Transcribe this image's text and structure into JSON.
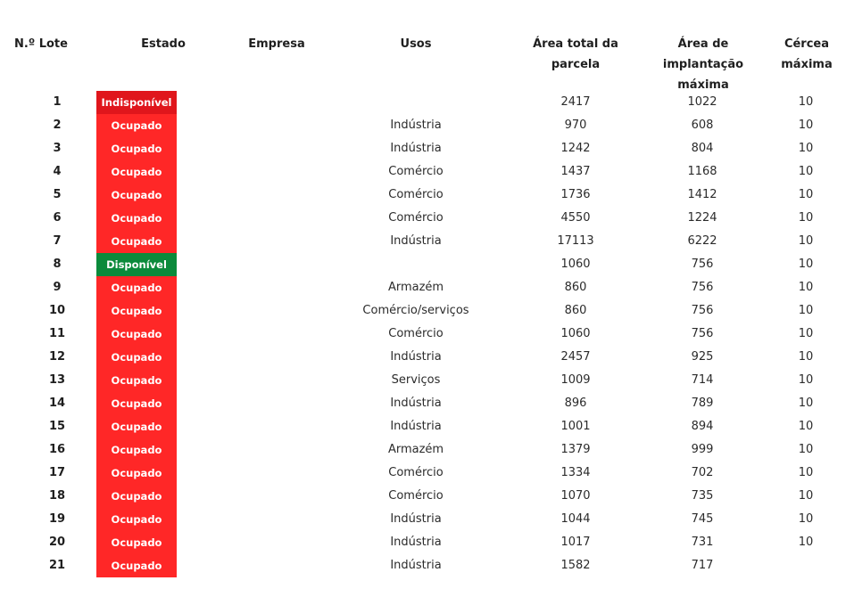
{
  "table": {
    "headers": {
      "lote": "N.º Lote",
      "estado": "Estado",
      "empresa": "Empresa",
      "usos": "Usos",
      "area_total": [
        "Área total da",
        "parcela"
      ],
      "area_implantacao": [
        "Área de",
        "implantação",
        "máxima"
      ],
      "cercea": [
        "Cércea",
        "máxima"
      ]
    },
    "status_colors": {
      "Ocupado": "#ff2727",
      "Indisponível": "#e0161c",
      "Disponível": "#0b8a3b"
    },
    "rows": [
      {
        "lote": "1",
        "estado": "Indisponível",
        "empresa": "",
        "usos": "",
        "area_total": "2417",
        "area_implantacao": "1022",
        "cercea": "10"
      },
      {
        "lote": "2",
        "estado": "Ocupado",
        "empresa": "",
        "usos": "Indústria",
        "area_total": "970",
        "area_implantacao": "608",
        "cercea": "10"
      },
      {
        "lote": "3",
        "estado": "Ocupado",
        "empresa": "",
        "usos": "Indústria",
        "area_total": "1242",
        "area_implantacao": "804",
        "cercea": "10"
      },
      {
        "lote": "4",
        "estado": "Ocupado",
        "empresa": "",
        "usos": "Comércio",
        "area_total": "1437",
        "area_implantacao": "1168",
        "cercea": "10"
      },
      {
        "lote": "5",
        "estado": "Ocupado",
        "empresa": "",
        "usos": "Comércio",
        "area_total": "1736",
        "area_implantacao": "1412",
        "cercea": "10"
      },
      {
        "lote": "6",
        "estado": "Ocupado",
        "empresa": "",
        "usos": "Comércio",
        "area_total": "4550",
        "area_implantacao": "1224",
        "cercea": "10"
      },
      {
        "lote": "7",
        "estado": "Ocupado",
        "empresa": "",
        "usos": "Indústria",
        "area_total": "17113",
        "area_implantacao": "6222",
        "cercea": "10"
      },
      {
        "lote": "8",
        "estado": "Disponível",
        "empresa": "",
        "usos": "",
        "area_total": "1060",
        "area_implantacao": "756",
        "cercea": "10"
      },
      {
        "lote": "9",
        "estado": "Ocupado",
        "empresa": "",
        "usos": "Armazém",
        "area_total": "860",
        "area_implantacao": "756",
        "cercea": "10"
      },
      {
        "lote": "10",
        "estado": "Ocupado",
        "empresa": "",
        "usos": "Comércio/serviços",
        "area_total": "860",
        "area_implantacao": "756",
        "cercea": "10"
      },
      {
        "lote": "11",
        "estado": "Ocupado",
        "empresa": "",
        "usos": "Comércio",
        "area_total": "1060",
        "area_implantacao": "756",
        "cercea": "10"
      },
      {
        "lote": "12",
        "estado": "Ocupado",
        "empresa": "",
        "usos": "Indústria",
        "area_total": "2457",
        "area_implantacao": "925",
        "cercea": "10"
      },
      {
        "lote": "13",
        "estado": "Ocupado",
        "empresa": "",
        "usos": "Serviços",
        "area_total": "1009",
        "area_implantacao": "714",
        "cercea": "10"
      },
      {
        "lote": "14",
        "estado": "Ocupado",
        "empresa": "",
        "usos": "Indústria",
        "area_total": "896",
        "area_implantacao": "789",
        "cercea": "10"
      },
      {
        "lote": "15",
        "estado": "Ocupado",
        "empresa": "",
        "usos": "Indústria",
        "area_total": "1001",
        "area_implantacao": "894",
        "cercea": "10"
      },
      {
        "lote": "16",
        "estado": "Ocupado",
        "empresa": "",
        "usos": "Armazém",
        "area_total": "1379",
        "area_implantacao": "999",
        "cercea": "10"
      },
      {
        "lote": "17",
        "estado": "Ocupado",
        "empresa": "",
        "usos": "Comércio",
        "area_total": "1334",
        "area_implantacao": "702",
        "cercea": "10"
      },
      {
        "lote": "18",
        "estado": "Ocupado",
        "empresa": "",
        "usos": "Comércio",
        "area_total": "1070",
        "area_implantacao": "735",
        "cercea": "10"
      },
      {
        "lote": "19",
        "estado": "Ocupado",
        "empresa": "",
        "usos": "Indústria",
        "area_total": "1044",
        "area_implantacao": "745",
        "cercea": "10"
      },
      {
        "lote": "20",
        "estado": "Ocupado",
        "empresa": "",
        "usos": "Indústria",
        "area_total": "1017",
        "area_implantacao": "731",
        "cercea": "10"
      },
      {
        "lote": "21",
        "estado": "Ocupado",
        "empresa": "",
        "usos": "Indústria",
        "area_total": "1582",
        "area_implantacao": "717",
        "cercea": ""
      }
    ]
  }
}
